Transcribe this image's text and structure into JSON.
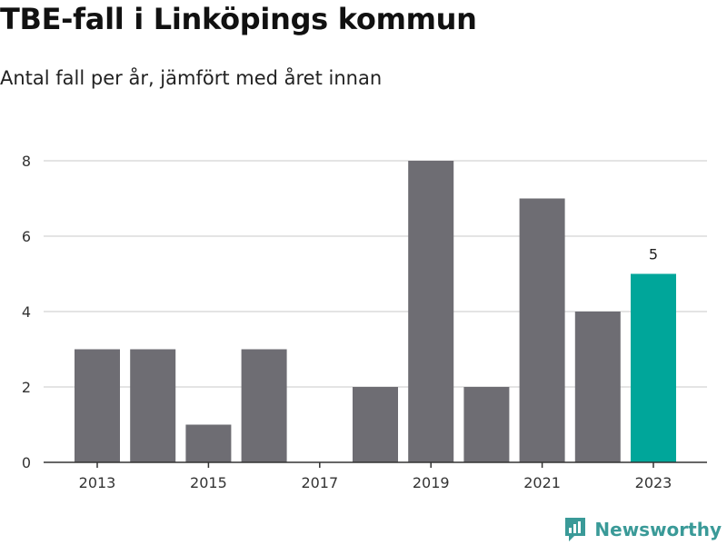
{
  "header": {
    "title": "TBE-fall i Linköpings kommun",
    "subtitle": "Antal fall per år, jämfört med året innan"
  },
  "brand": {
    "name": "Newsworthy",
    "color": "#3a9a98"
  },
  "colors": {
    "bar": "#6e6d73",
    "highlight": "#00a69a",
    "grid": "#dcdcdc",
    "axis": "#333333"
  },
  "chart_data": {
    "type": "bar",
    "title": "TBE-fall i Linköpings kommun",
    "subtitle": "Antal fall per år, jämfört med året innan",
    "categories": [
      "2013",
      "2014",
      "2015",
      "2016",
      "2017",
      "2018",
      "2019",
      "2020",
      "2021",
      "2022",
      "2023"
    ],
    "values": [
      3,
      3,
      1,
      3,
      0,
      2,
      8,
      2,
      7,
      4,
      5
    ],
    "x_tick_labels": [
      "2013",
      "2015",
      "2017",
      "2019",
      "2021",
      "2023"
    ],
    "y_ticks": [
      0,
      2,
      4,
      6,
      8
    ],
    "ylim": [
      0,
      8
    ],
    "highlight_category": "2023",
    "data_labels": [
      {
        "category": "2023",
        "text": "5"
      }
    ],
    "xlabel": "",
    "ylabel": "",
    "grid": true,
    "legend": "none"
  }
}
